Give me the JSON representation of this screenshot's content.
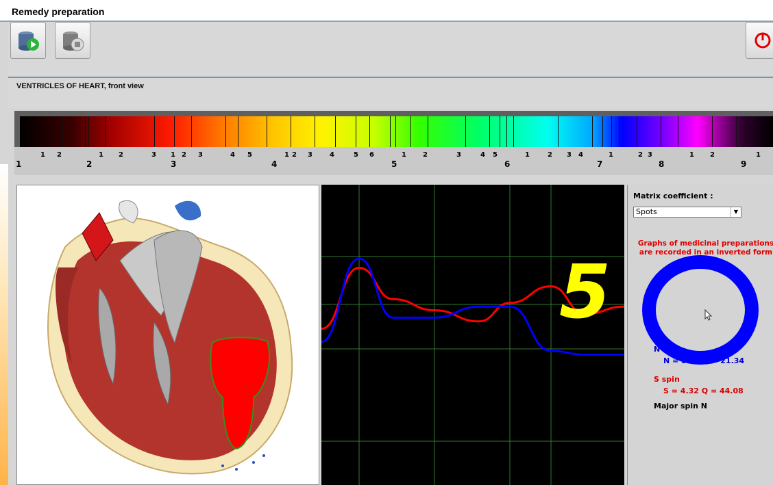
{
  "window": {
    "title": "Remedy preparation"
  },
  "toolbar": {
    "buttons": [
      {
        "name": "start",
        "icon": "disk-play-icon"
      },
      {
        "name": "stop",
        "icon": "disk-stop-icon"
      },
      {
        "name": "exit",
        "icon": "power-icon"
      }
    ]
  },
  "organ": {
    "title": "VENTRICLES OF HEART, front view"
  },
  "spectrum": {
    "major_labels": [
      "1",
      "2",
      "3",
      "4",
      "5",
      "6",
      "7",
      "8",
      "9"
    ],
    "minor_labels": [
      "1",
      "2",
      "1",
      "2",
      "3",
      "1",
      "2",
      "3",
      "4",
      "5",
      "1",
      "2",
      "3",
      "4",
      "5",
      "6",
      "1",
      "2",
      "3",
      "4",
      "5",
      "1",
      "2",
      "3",
      "4",
      "1",
      "2",
      "3",
      "1",
      "2",
      "1"
    ]
  },
  "matrix": {
    "label": "Matrix coefficient :",
    "selected": "Spots"
  },
  "note": {
    "line1": "Graphs of medicinal preparations",
    "line2": "are recorded in an inverted form"
  },
  "spins": {
    "n_label": "N spin",
    "n_value": "N = 5.40   Q = 21.34",
    "s_label": "S spin",
    "s_value": "S = 4.32   Q = 44.08",
    "major": "Major spin N"
  },
  "annotation": {
    "number": "5",
    "circle_color": "#0000ff",
    "number_color": "#ffff00"
  },
  "chart_data": {
    "type": "line",
    "series": [
      {
        "color": "#ff0000",
        "values": [
          0.22,
          0.55,
          0.38,
          0.32,
          0.26,
          0.36,
          0.45,
          0.3,
          0.34
        ]
      },
      {
        "color": "#0000ff",
        "values": [
          0.15,
          0.6,
          0.28,
          0.28,
          0.34,
          0.34,
          0.1,
          0.08,
          0.08
        ]
      }
    ],
    "grid": true
  }
}
